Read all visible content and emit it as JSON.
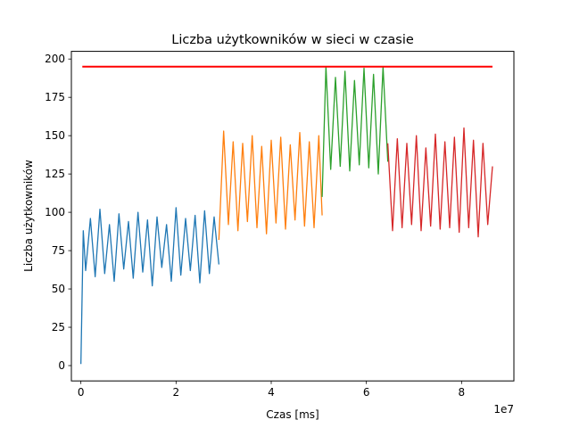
{
  "chart_data": {
    "type": "line",
    "title": "Liczba użytkowników w sieci w czasie",
    "xlabel": "Czas [ms]",
    "ylabel": "Liczba użytkowników",
    "x_offset_label": "1e7",
    "x_scale": 10000000,
    "xlim": [
      -2000000,
      91000000
    ],
    "ylim": [
      -10,
      205
    ],
    "xticks": [
      {
        "value": 0,
        "label": "0"
      },
      {
        "value": 20000000,
        "label": "2"
      },
      {
        "value": 40000000,
        "label": "4"
      },
      {
        "value": 60000000,
        "label": "6"
      },
      {
        "value": 80000000,
        "label": "8"
      }
    ],
    "yticks": [
      {
        "value": 0,
        "label": "0"
      },
      {
        "value": 25,
        "label": "25"
      },
      {
        "value": 50,
        "label": "50"
      },
      {
        "value": 75,
        "label": "75"
      },
      {
        "value": 100,
        "label": "100"
      },
      {
        "value": 125,
        "label": "125"
      },
      {
        "value": 150,
        "label": "150"
      },
      {
        "value": 175,
        "label": "175"
      },
      {
        "value": 200,
        "label": "200"
      }
    ],
    "grid": false,
    "legend": "none",
    "series": [
      {
        "color": "#1f77b4",
        "x": [
          0,
          500000,
          1000000,
          2000000,
          3000000,
          4000000,
          5000000,
          6000000,
          7000000,
          8000000,
          9000000,
          10000000,
          11000000,
          12000000,
          13000000,
          14000000,
          15000000,
          16000000,
          17000000,
          18000000,
          19000000,
          20000000,
          21000000,
          22000000,
          23000000,
          24000000,
          25000000,
          26000000,
          27000000,
          28000000,
          29000000
        ],
        "y": [
          1,
          88,
          62,
          96,
          58,
          102,
          60,
          92,
          55,
          99,
          63,
          94,
          57,
          100,
          61,
          95,
          52,
          97,
          64,
          92,
          55,
          103,
          59,
          96,
          62,
          98,
          54,
          101,
          60,
          97,
          66
        ]
      },
      {
        "color": "#ff7f0e",
        "x": [
          29000000,
          30000000,
          31000000,
          32000000,
          33000000,
          34000000,
          35000000,
          36000000,
          37000000,
          38000000,
          39000000,
          40000000,
          41000000,
          42000000,
          43000000,
          44000000,
          45000000,
          46000000,
          47000000,
          48000000,
          49000000,
          50000000,
          50700000
        ],
        "y": [
          82,
          153,
          92,
          146,
          88,
          145,
          94,
          150,
          90,
          143,
          86,
          147,
          93,
          149,
          89,
          144,
          95,
          152,
          91,
          146,
          90,
          150,
          98
        ]
      },
      {
        "color": "#2ca02c",
        "x": [
          50700000,
          51500000,
          52500000,
          53500000,
          54500000,
          55500000,
          56500000,
          57500000,
          58500000,
          59500000,
          60500000,
          61500000,
          62500000,
          63500000,
          64500000
        ],
        "y": [
          110,
          195,
          128,
          188,
          130,
          192,
          127,
          186,
          131,
          194,
          129,
          190,
          125,
          195,
          133
        ]
      },
      {
        "color": "#d62728",
        "x": [
          64500000,
          65500000,
          66500000,
          67500000,
          68500000,
          69500000,
          70500000,
          71500000,
          72500000,
          73500000,
          74500000,
          75500000,
          76500000,
          77500000,
          78500000,
          79500000,
          80500000,
          81500000,
          82500000,
          83500000,
          84500000,
          85500000,
          86500000
        ],
        "y": [
          145,
          88,
          148,
          90,
          145,
          92,
          150,
          88,
          142,
          91,
          151,
          89,
          146,
          90,
          149,
          87,
          155,
          90,
          147,
          84,
          145,
          92,
          130
        ]
      },
      {
        "color": "#ff0000",
        "x": [
          300000,
          86500000
        ],
        "y": [
          195,
          195
        ]
      }
    ]
  }
}
